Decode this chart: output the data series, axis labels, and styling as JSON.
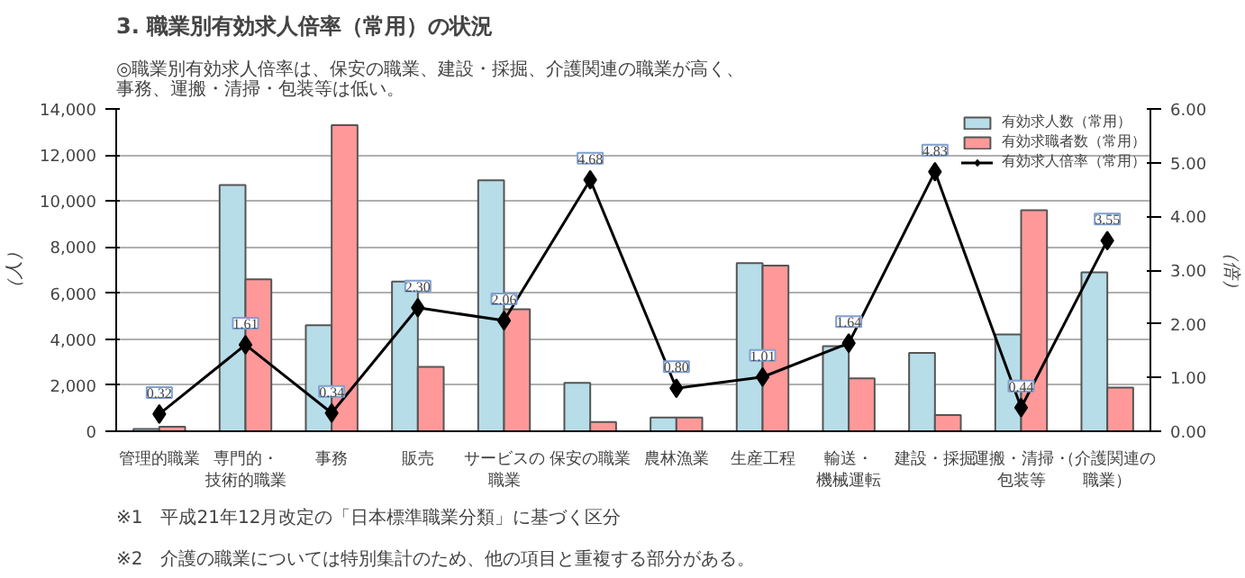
{
  "chart_data": {
    "type": "bar",
    "title": "3. 職業別有効求人倍率（常用）の状況",
    "subtitle": "◎職業別有効求人倍率は、保安の職業、建設・採掘、介護関連の職業が高く、事務、運搬・清掃・包装等は低い。",
    "categories": [
      "管理的職業",
      "専門的・技術的職業",
      "事務",
      "販売",
      "サービスの職業",
      "保安の職業",
      "農林漁業",
      "生産工程",
      "輸送・機械運転",
      "建設・採掘",
      "運搬・清掃・包装等",
      "（介護関連の職業）"
    ],
    "series": [
      {
        "name": "有効求人数（常用）",
        "color": "#b7dde8",
        "values": [
          100,
          10700,
          4600,
          6500,
          10900,
          2100,
          600,
          7300,
          3700,
          3400,
          4200,
          6900
        ]
      },
      {
        "name": "有効求職者数（常用）",
        "color": "#ff9999",
        "values": [
          200,
          6600,
          13300,
          2800,
          5300,
          400,
          600,
          7200,
          2300,
          700,
          9600,
          1900
        ]
      },
      {
        "name": "有効求人倍率（常用）",
        "type": "line",
        "axis": "y2",
        "color": "#000000",
        "marker": "diamond",
        "values": [
          0.32,
          1.61,
          0.34,
          2.3,
          2.06,
          4.68,
          0.8,
          1.01,
          1.64,
          4.83,
          0.44,
          3.55
        ],
        "value_labels": [
          "0.32",
          "1.61",
          "0.34",
          "2.30",
          "2.06",
          "4.68",
          "0.80",
          "1.01",
          "1.64",
          "4.83",
          "0.44",
          "3.55"
        ]
      }
    ],
    "ylabel": "（人）",
    "y2label": "（倍）",
    "ylim": [
      0,
      14000
    ],
    "yticks": [
      0,
      {
        "value": 2000,
        "label": "2,000"
      },
      {
        "value": 4000,
        "label": "4,000"
      },
      {
        "value": 6000,
        "label": "6,000"
      },
      {
        "value": 8000,
        "label": "8,000"
      },
      {
        "value": 10000,
        "label": "10,000"
      },
      {
        "value": 12000,
        "label": "12,000"
      },
      {
        "value": 14000,
        "label": "14,000"
      }
    ],
    "y2lim": [
      0,
      6
    ],
    "y2ticks": [
      {
        "value": 0,
        "label": "0.00"
      },
      {
        "value": 1,
        "label": "1.00"
      },
      {
        "value": 2,
        "label": "2.00"
      },
      {
        "value": 3,
        "label": "3.00"
      },
      {
        "value": 4,
        "label": "4.00"
      },
      {
        "value": 5,
        "label": "5.00"
      },
      {
        "value": 6,
        "label": "6.00"
      }
    ],
    "grid": "y",
    "legend": "top right",
    "annotations": [
      "※1　平成21年12月改定の「日本標準職業分類」に基づく区分",
      "※2　介護の職業については特別集計のため、他の項目と重複する部分がある。"
    ]
  }
}
